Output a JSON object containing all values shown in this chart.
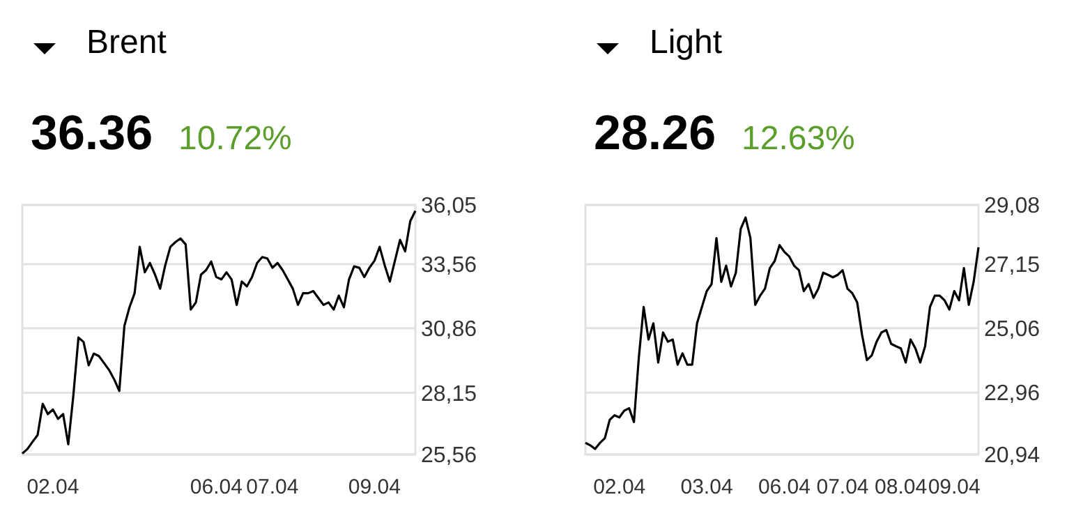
{
  "chart_data": [
    {
      "type": "line",
      "title": "Brent",
      "subtitle": "36.36",
      "annotations": [
        "10.72%"
      ],
      "color": "#000000",
      "grid": "y",
      "tick_labels": true,
      "categories": [
        null,
        null,
        null,
        null,
        null,
        null,
        "02.04",
        null,
        null,
        null,
        null,
        null,
        null,
        null,
        null,
        null,
        null,
        null,
        null,
        null,
        null,
        null,
        null,
        null,
        null,
        null,
        null,
        null,
        null,
        null,
        null,
        null,
        null,
        null,
        null,
        null,
        null,
        null,
        "06.04",
        null,
        null,
        null,
        null,
        null,
        null,
        null,
        null,
        null,
        null,
        "07.04",
        null,
        null,
        null,
        null,
        null,
        null,
        null,
        null,
        null,
        null,
        null,
        null,
        null,
        null,
        null,
        null,
        null,
        null,
        null,
        "09.04",
        null,
        null,
        null,
        null,
        null,
        null,
        null,
        null
      ],
      "ylim": [
        25.56,
        36.05
      ],
      "yticks": [
        {
          "value": 25.56,
          "label": "25,56"
        },
        {
          "value": 28.15,
          "label": "28,15"
        },
        {
          "value": 30.86,
          "label": "30,86"
        },
        {
          "value": 33.56,
          "label": "33,56"
        },
        {
          "value": 36.05,
          "label": "36,05"
        }
      ],
      "values": [
        25.6,
        25.79,
        26.09,
        26.38,
        27.69,
        27.26,
        27.45,
        27.06,
        27.26,
        25.99,
        28.04,
        30.48,
        30.29,
        29.31,
        29.8,
        29.7,
        29.41,
        29.11,
        28.72,
        28.23,
        30.97,
        31.75,
        32.34,
        34.29,
        33.22,
        33.61,
        33.12,
        32.53,
        33.51,
        34.29,
        34.49,
        34.64,
        34.39,
        31.65,
        31.95,
        33.12,
        33.31,
        33.67,
        33.02,
        32.92,
        33.22,
        32.92,
        31.85,
        32.83,
        32.63,
        33.02,
        33.61,
        33.86,
        33.8,
        33.41,
        33.61,
        33.31,
        32.92,
        32.53,
        31.85,
        32.34,
        32.34,
        32.43,
        32.14,
        31.85,
        31.95,
        31.65,
        32.24,
        31.75,
        32.92,
        33.47,
        33.41,
        33.02,
        33.41,
        33.71,
        34.29,
        33.51,
        32.83,
        33.71,
        34.58,
        34.1,
        35.37,
        35.8
      ]
    },
    {
      "type": "line",
      "title": "Light",
      "subtitle": "28.26",
      "annotations": [
        "12.63%"
      ],
      "color": "#000000",
      "grid": "y",
      "tick_labels": true,
      "categories": [
        null,
        null,
        null,
        null,
        null,
        null,
        null,
        "02.04",
        null,
        null,
        null,
        null,
        null,
        null,
        null,
        null,
        null,
        null,
        null,
        null,
        null,
        null,
        null,
        null,
        null,
        "03.04",
        null,
        null,
        null,
        null,
        null,
        null,
        null,
        null,
        null,
        null,
        null,
        null,
        null,
        null,
        null,
        "06.04",
        null,
        null,
        null,
        null,
        null,
        null,
        null,
        null,
        null,
        null,
        null,
        "07.04",
        null,
        null,
        null,
        null,
        null,
        null,
        null,
        null,
        null,
        null,
        null,
        "08.04",
        null,
        null,
        null,
        null,
        null,
        null,
        null,
        null,
        null,
        null,
        "09.04",
        null,
        null,
        null,
        null,
        null
      ],
      "ylim": [
        20.94,
        29.08
      ],
      "yticks": [
        {
          "value": 20.94,
          "label": "20,94"
        },
        {
          "value": 22.96,
          "label": "22,96"
        },
        {
          "value": 25.06,
          "label": "25,06"
        },
        {
          "value": 27.15,
          "label": "27,15"
        },
        {
          "value": 29.08,
          "label": "29,08"
        }
      ],
      "values": [
        21.32,
        21.24,
        21.12,
        21.32,
        21.47,
        22.07,
        22.22,
        22.15,
        22.37,
        22.45,
        22.0,
        24.09,
        25.75,
        24.69,
        25.22,
        23.94,
        24.92,
        24.62,
        24.69,
        23.87,
        24.24,
        23.87,
        23.87,
        25.22,
        25.75,
        26.27,
        26.5,
        28.0,
        26.57,
        27.1,
        26.42,
        26.87,
        28.3,
        28.67,
        28.0,
        25.82,
        26.12,
        26.35,
        27.02,
        27.25,
        27.77,
        27.55,
        27.4,
        27.1,
        26.95,
        26.27,
        26.5,
        26.05,
        26.35,
        26.87,
        26.8,
        26.72,
        26.8,
        26.95,
        26.35,
        26.2,
        25.9,
        24.85,
        24.02,
        24.17,
        24.62,
        24.92,
        25.0,
        24.55,
        24.47,
        24.4,
        23.94,
        24.69,
        24.4,
        23.94,
        24.47,
        25.75,
        26.12,
        26.12,
        25.97,
        25.67,
        26.27,
        25.97,
        27.02,
        25.82,
        26.57,
        27.7
      ]
    }
  ]
}
